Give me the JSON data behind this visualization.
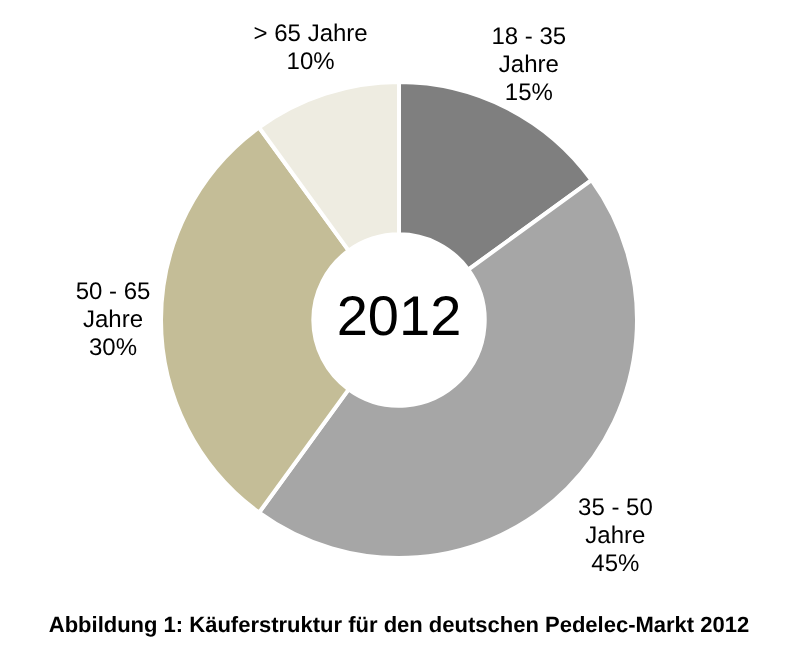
{
  "chart_data": {
    "type": "donut",
    "categories": [
      "18 - 35 Jahre",
      "35 - 50 Jahre",
      "50 - 65 Jahre",
      "> 65 Jahre"
    ],
    "values": [
      15,
      45,
      30,
      10
    ],
    "colors": [
      "#7f7f7f",
      "#a6a6a6",
      "#c4bd97",
      "#eeece1"
    ],
    "value_labels": [
      "15%",
      "45%",
      "30%",
      "10%"
    ],
    "legend": false,
    "annotations": [
      "2012",
      "Abbildung 1: Käuferstruktur für den deutschen Pedelec-Markt 2012"
    ]
  }
}
